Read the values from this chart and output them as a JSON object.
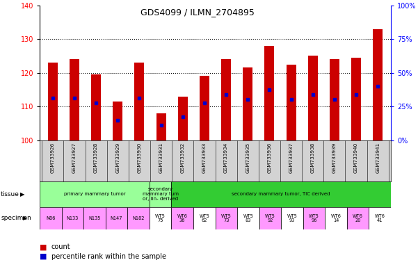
{
  "title": "GDS4099 / ILMN_2704895",
  "samples": [
    "GSM733926",
    "GSM733927",
    "GSM733928",
    "GSM733929",
    "GSM733930",
    "GSM733931",
    "GSM733932",
    "GSM733933",
    "GSM733934",
    "GSM733935",
    "GSM733936",
    "GSM733937",
    "GSM733938",
    "GSM733939",
    "GSM733940",
    "GSM733941"
  ],
  "bar_heights": [
    123,
    124,
    119.5,
    111.5,
    123,
    108,
    113,
    119,
    124,
    121.5,
    128,
    122.5,
    125,
    124,
    124.5,
    133
  ],
  "blue_positions": [
    112.5,
    112.5,
    111,
    106,
    112.5,
    104.5,
    107,
    111,
    113.5,
    112,
    115,
    112,
    113.5,
    112,
    113.5,
    116
  ],
  "ymin": 100,
  "ymax": 140,
  "yticks": [
    100,
    110,
    120,
    130,
    140
  ],
  "y2ticks": [
    0,
    25,
    50,
    75,
    100
  ],
  "y2labels": [
    "0%",
    "25%",
    "50%",
    "75%",
    "100%"
  ],
  "tissue_groups": [
    {
      "text": "primary mammary tumor",
      "start": 0,
      "end": 4,
      "color": "#99ff99"
    },
    {
      "text": "secondary\nmammary tum\nor, lin- derived",
      "start": 5,
      "end": 5,
      "color": "#99ff99"
    },
    {
      "text": "secondary mammary tumor, TIC derived",
      "start": 6,
      "end": 15,
      "color": "#33cc33"
    }
  ],
  "specimen_labels": [
    {
      "text": "N86",
      "start": 0,
      "end": 0,
      "color": "#ff99ff"
    },
    {
      "text": "N133",
      "start": 1,
      "end": 1,
      "color": "#ff99ff"
    },
    {
      "text": "N135",
      "start": 2,
      "end": 2,
      "color": "#ff99ff"
    },
    {
      "text": "N147",
      "start": 3,
      "end": 3,
      "color": "#ff99ff"
    },
    {
      "text": "N182",
      "start": 4,
      "end": 4,
      "color": "#ff99ff"
    },
    {
      "text": "WT5\n75",
      "start": 5,
      "end": 5,
      "color": "#ffffff"
    },
    {
      "text": "WT6\n36",
      "start": 6,
      "end": 6,
      "color": "#ff99ff"
    },
    {
      "text": "WT5\n62",
      "start": 7,
      "end": 7,
      "color": "#ffffff"
    },
    {
      "text": "WT5\n73",
      "start": 8,
      "end": 8,
      "color": "#ff99ff"
    },
    {
      "text": "WT5\n83",
      "start": 9,
      "end": 9,
      "color": "#ffffff"
    },
    {
      "text": "WT5\n92",
      "start": 10,
      "end": 10,
      "color": "#ff99ff"
    },
    {
      "text": "WT5\n93",
      "start": 11,
      "end": 11,
      "color": "#ffffff"
    },
    {
      "text": "WT5\n96",
      "start": 12,
      "end": 12,
      "color": "#ff99ff"
    },
    {
      "text": "WT6\n14",
      "start": 13,
      "end": 13,
      "color": "#ffffff"
    },
    {
      "text": "WT6\n20",
      "start": 14,
      "end": 14,
      "color": "#ff99ff"
    },
    {
      "text": "WT6\n41",
      "start": 15,
      "end": 15,
      "color": "#ffffff"
    }
  ],
  "bar_color": "#cc0000",
  "blue_color": "#0000cc",
  "bar_width": 0.45,
  "legend_items": [
    {
      "label": "count",
      "color": "#cc0000"
    },
    {
      "label": "percentile rank within the sample",
      "color": "#0000cc"
    }
  ],
  "grid_lines": [
    110,
    120,
    130
  ],
  "xlab_gray": "#d3d3d3"
}
